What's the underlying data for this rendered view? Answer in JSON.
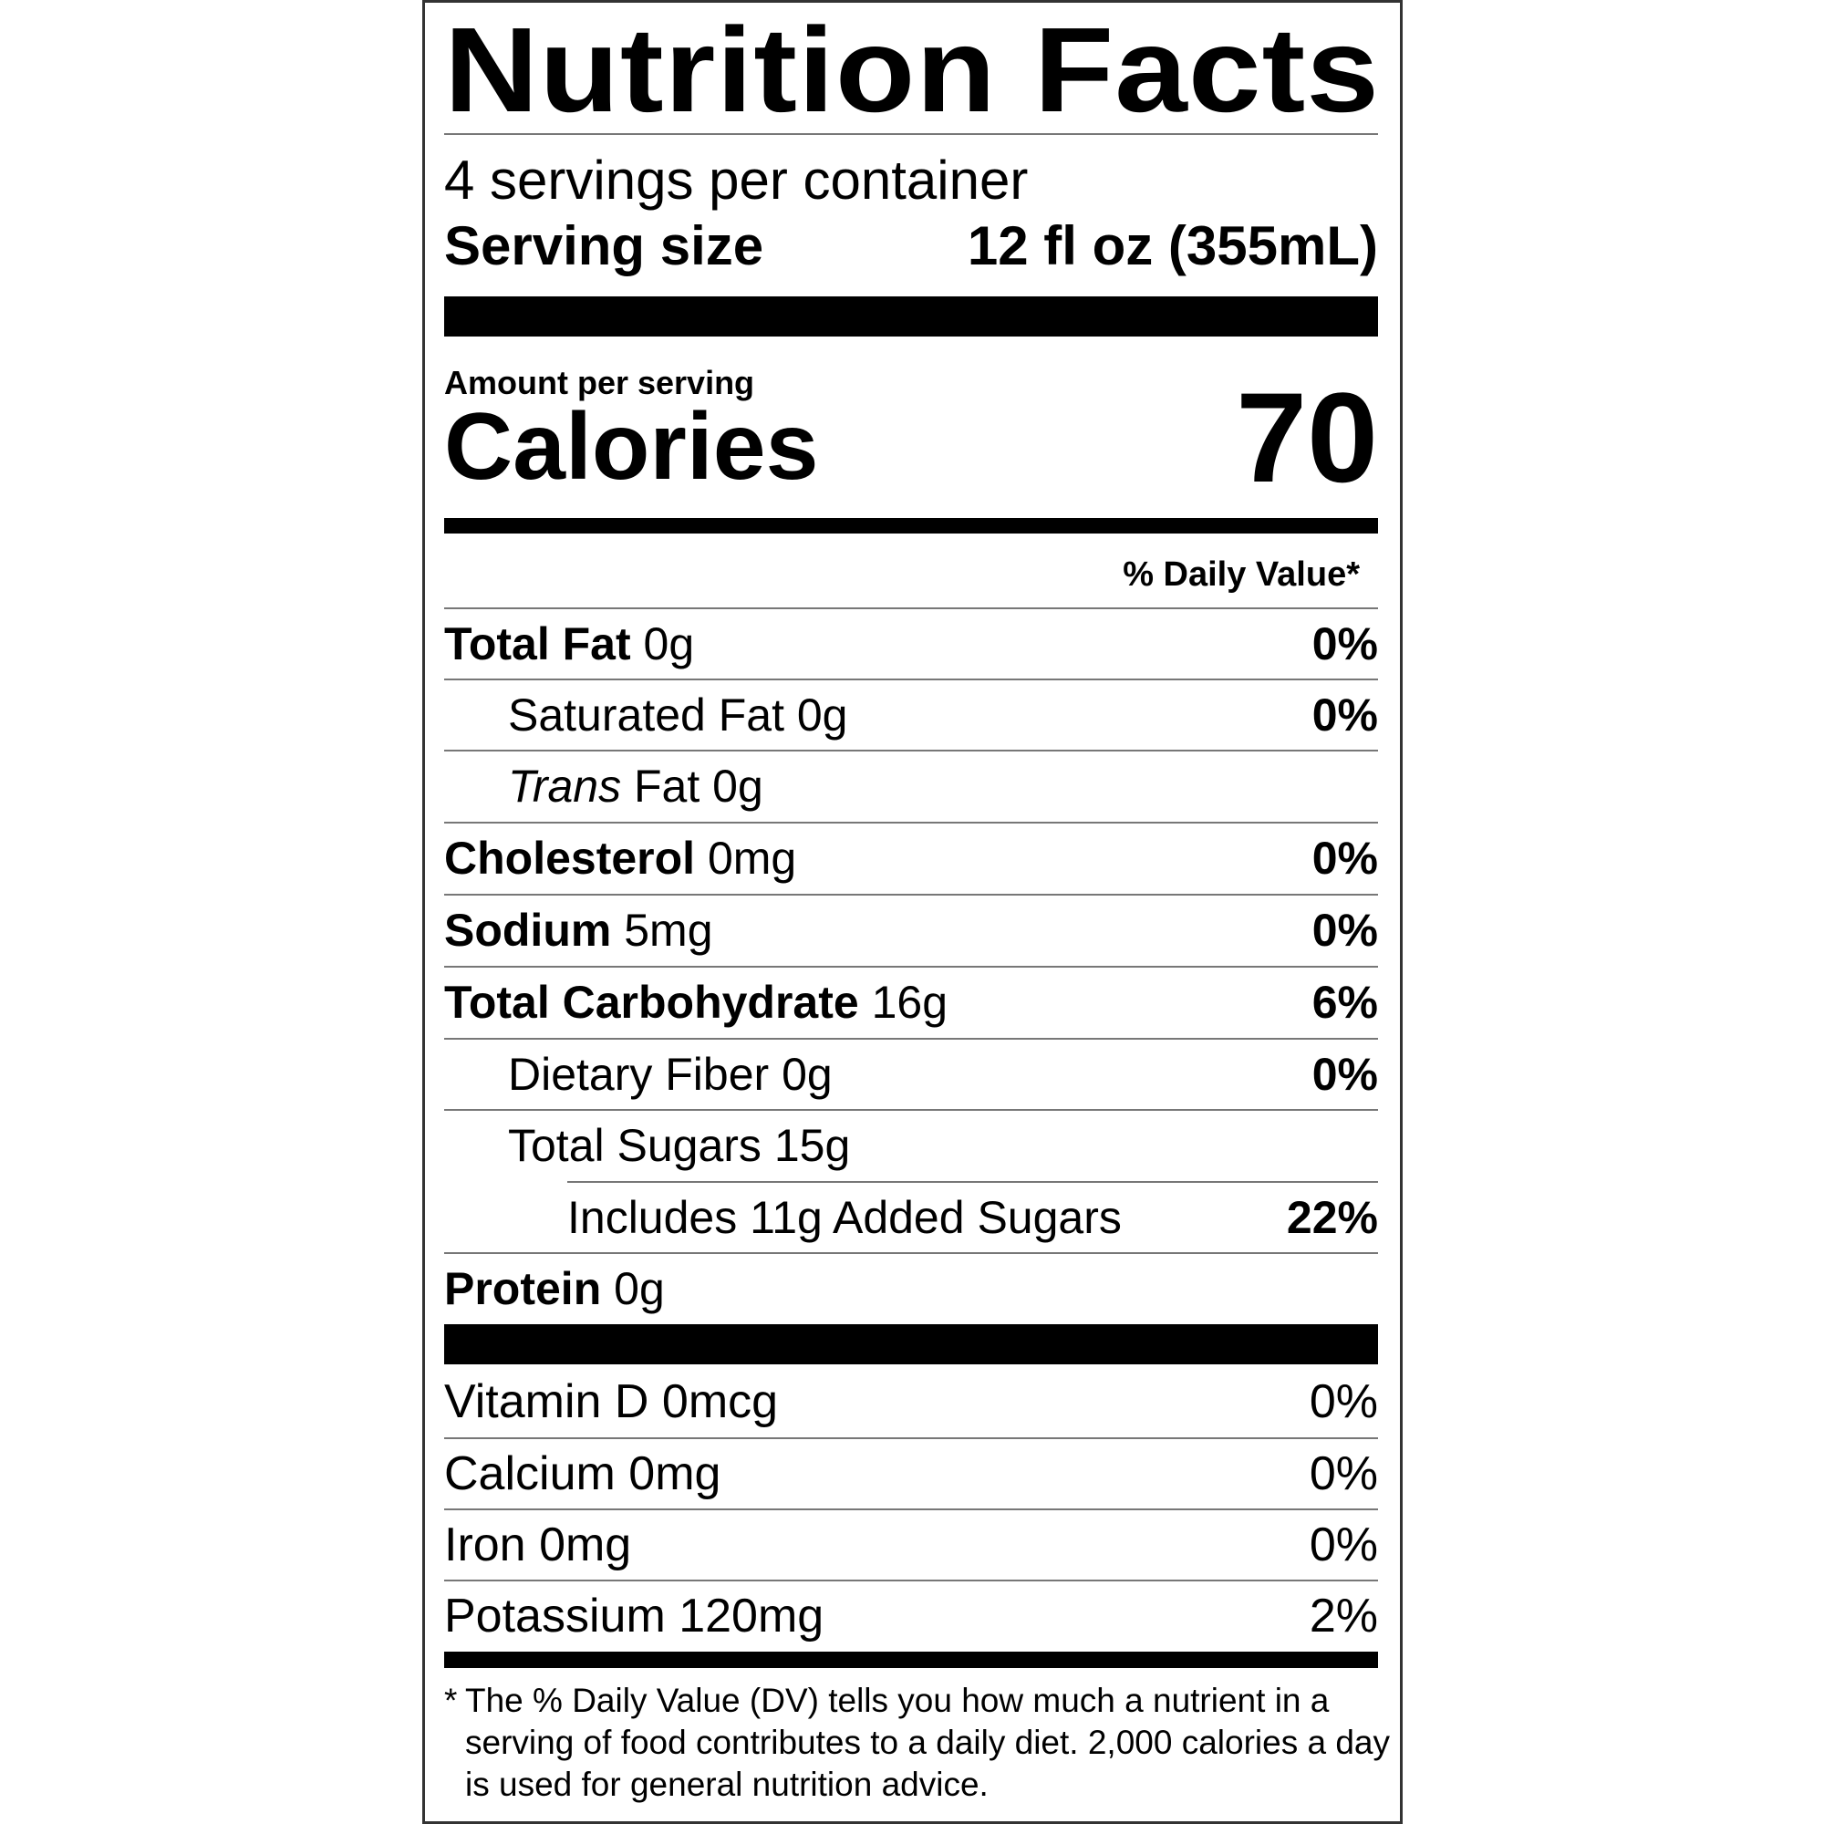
{
  "title": "Nutrition Facts",
  "servings_per_container": "4 servings per container",
  "serving_size": {
    "label": "Serving size",
    "value": "12 fl oz (355mL)"
  },
  "amount_per_serving": "Amount per serving",
  "calories": {
    "label": "Calories",
    "value": "70"
  },
  "daily_value_header": "% Daily Value*",
  "nutrients": [
    {
      "name": "Total Fat",
      "amount": "0g",
      "dv": "0%"
    },
    {
      "name": "Saturated Fat",
      "amount": "0g",
      "dv": "0%"
    },
    {
      "name_italic": "Trans",
      "name": "Fat",
      "amount": "0g",
      "dv": ""
    },
    {
      "name": "Cholesterol",
      "amount": "0mg",
      "dv": "0%"
    },
    {
      "name": "Sodium",
      "amount": "5mg",
      "dv": "0%"
    },
    {
      "name": "Total Carbohydrate",
      "amount": "16g",
      "dv": "6%"
    },
    {
      "name": "Dietary Fiber",
      "amount": "0g",
      "dv": "0%"
    },
    {
      "name": "Total Sugars",
      "amount": "15g",
      "dv": ""
    },
    {
      "name": "Includes 11g Added Sugars",
      "amount": "",
      "dv": "22%"
    },
    {
      "name": "Protein",
      "amount": "0g",
      "dv": ""
    }
  ],
  "vitamins": [
    {
      "name": "Vitamin D",
      "amount": "0mcg",
      "dv": "0%"
    },
    {
      "name": "Calcium",
      "amount": "0mg",
      "dv": "0%"
    },
    {
      "name": "Iron",
      "amount": "0mg",
      "dv": "0%"
    },
    {
      "name": "Potassium",
      "amount": "120mg",
      "dv": "2%"
    }
  ],
  "footnote": {
    "asterisk": "*",
    "text": "The % Daily Value (DV) tells you how much a nutrient in a serving of food contributes to a daily diet. 2,000 calories a day is used for general nutrition advice."
  }
}
